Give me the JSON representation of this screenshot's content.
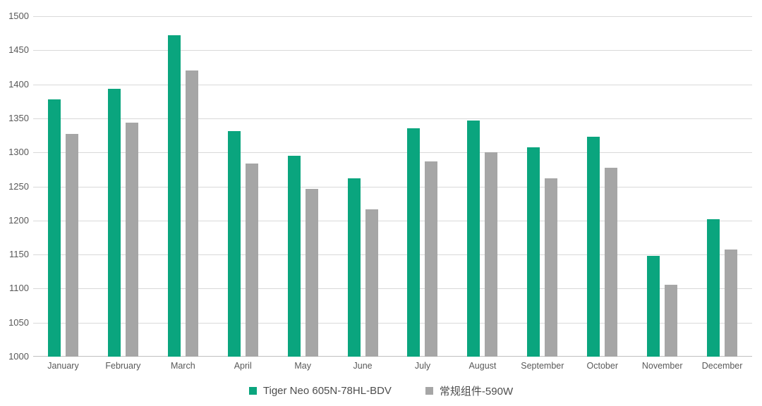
{
  "chart_data": {
    "type": "bar",
    "title": "",
    "xlabel": "",
    "ylabel": "",
    "categories": [
      "January",
      "February",
      "March",
      "April",
      "May",
      "June",
      "July",
      "August",
      "September",
      "October",
      "November",
      "December"
    ],
    "series": [
      {
        "name": "Tiger Neo 605N-78HL-BDV",
        "color": "#0AA57E",
        "values": [
          1378,
          1393,
          1472,
          1331,
          1295,
          1262,
          1335,
          1347,
          1307,
          1323,
          1148,
          1202
        ]
      },
      {
        "name": "常规组件-590W",
        "color": "#A6A6A6",
        "values": [
          1327,
          1344,
          1420,
          1284,
          1246,
          1216,
          1287,
          1300,
          1262,
          1277,
          1106,
          1157
        ]
      }
    ],
    "ylim": [
      1000,
      1500
    ],
    "ytick_step": 50,
    "ytick_labels": [
      "1000",
      "1050",
      "1100",
      "1150",
      "1200",
      "1250",
      "1300",
      "1350",
      "1400",
      "1450",
      "1500"
    ],
    "grid": true,
    "legend_position": "bottom"
  },
  "style": {
    "background_color": "#ffffff",
    "gridline_color": "#D9D9D9",
    "axis_line_color": "#BFBFBF",
    "tick_label_color": "#595959",
    "legend_text_color": "#4D4D4D"
  }
}
